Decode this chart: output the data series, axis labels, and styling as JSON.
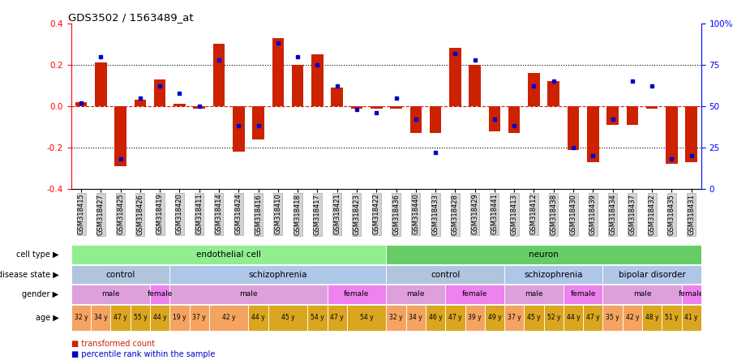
{
  "title": "GDS3502 / 1563489_at",
  "samples": [
    "GSM318415",
    "GSM318427",
    "GSM318425",
    "GSM318426",
    "GSM318419",
    "GSM318420",
    "GSM318411",
    "GSM318414",
    "GSM318424",
    "GSM318416",
    "GSM318410",
    "GSM318418",
    "GSM318417",
    "GSM318421",
    "GSM318423",
    "GSM318422",
    "GSM318436",
    "GSM318440",
    "GSM318433",
    "GSM318428",
    "GSM318429",
    "GSM318441",
    "GSM318413",
    "GSM318412",
    "GSM318438",
    "GSM318430",
    "GSM318439",
    "GSM318434",
    "GSM318437",
    "GSM318432",
    "GSM318435",
    "GSM318431"
  ],
  "bar_values": [
    0.02,
    0.21,
    -0.29,
    0.03,
    0.13,
    0.01,
    -0.01,
    0.3,
    -0.22,
    -0.16,
    0.33,
    0.2,
    0.25,
    0.09,
    -0.01,
    -0.01,
    -0.01,
    -0.13,
    -0.13,
    0.28,
    0.2,
    -0.12,
    -0.13,
    0.16,
    0.12,
    -0.21,
    -0.27,
    -0.09,
    -0.09,
    -0.01,
    -0.28,
    -0.27
  ],
  "dot_values": [
    52,
    80,
    18,
    55,
    62,
    58,
    50,
    78,
    38,
    38,
    88,
    80,
    75,
    62,
    48,
    46,
    55,
    42,
    22,
    82,
    78,
    42,
    38,
    62,
    65,
    25,
    20,
    42,
    65,
    62,
    18,
    20
  ],
  "cell_type_blocks": [
    {
      "label": "endothelial cell",
      "start": 0,
      "end": 16,
      "color": "#90ee90"
    },
    {
      "label": "neuron",
      "start": 16,
      "end": 32,
      "color": "#66cd66"
    }
  ],
  "disease_state_blocks": [
    {
      "label": "control",
      "start": 0,
      "end": 5,
      "color": "#b0c4de"
    },
    {
      "label": "schizophrenia",
      "start": 5,
      "end": 16,
      "color": "#aec6e8"
    },
    {
      "label": "control",
      "start": 16,
      "end": 22,
      "color": "#b0c4de"
    },
    {
      "label": "schizophrenia",
      "start": 22,
      "end": 27,
      "color": "#aec6e8"
    },
    {
      "label": "bipolar disorder",
      "start": 27,
      "end": 32,
      "color": "#aec6e8"
    }
  ],
  "gender_blocks": [
    {
      "label": "male",
      "start": 0,
      "end": 4,
      "color": "#dda0dd"
    },
    {
      "label": "female",
      "start": 4,
      "end": 5,
      "color": "#ee82ee"
    },
    {
      "label": "male",
      "start": 5,
      "end": 13,
      "color": "#dda0dd"
    },
    {
      "label": "female",
      "start": 13,
      "end": 16,
      "color": "#ee82ee"
    },
    {
      "label": "male",
      "start": 16,
      "end": 19,
      "color": "#dda0dd"
    },
    {
      "label": "female",
      "start": 19,
      "end": 22,
      "color": "#ee82ee"
    },
    {
      "label": "male",
      "start": 22,
      "end": 25,
      "color": "#dda0dd"
    },
    {
      "label": "female",
      "start": 25,
      "end": 27,
      "color": "#ee82ee"
    },
    {
      "label": "male",
      "start": 27,
      "end": 31,
      "color": "#dda0dd"
    },
    {
      "label": "female",
      "start": 31,
      "end": 32,
      "color": "#ee82ee"
    }
  ],
  "age_blocks": [
    {
      "label": "32 y",
      "start": 0,
      "end": 1,
      "color": "#f4a460"
    },
    {
      "label": "34 y",
      "start": 1,
      "end": 2,
      "color": "#f4a460"
    },
    {
      "label": "47 y",
      "start": 2,
      "end": 3,
      "color": "#daa520"
    },
    {
      "label": "55 y",
      "start": 3,
      "end": 4,
      "color": "#daa520"
    },
    {
      "label": "44 y",
      "start": 4,
      "end": 5,
      "color": "#daa520"
    },
    {
      "label": "19 y",
      "start": 5,
      "end": 6,
      "color": "#f4a460"
    },
    {
      "label": "37 y",
      "start": 6,
      "end": 7,
      "color": "#f4a460"
    },
    {
      "label": "42 y",
      "start": 7,
      "end": 9,
      "color": "#f4a460"
    },
    {
      "label": "44 y",
      "start": 9,
      "end": 10,
      "color": "#daa520"
    },
    {
      "label": "45 y",
      "start": 10,
      "end": 12,
      "color": "#daa520"
    },
    {
      "label": "54 y",
      "start": 12,
      "end": 13,
      "color": "#daa520"
    },
    {
      "label": "47 y",
      "start": 13,
      "end": 14,
      "color": "#daa520"
    },
    {
      "label": "54 y",
      "start": 14,
      "end": 16,
      "color": "#daa520"
    },
    {
      "label": "32 y",
      "start": 16,
      "end": 17,
      "color": "#f4a460"
    },
    {
      "label": "34 y",
      "start": 17,
      "end": 18,
      "color": "#f4a460"
    },
    {
      "label": "46 y",
      "start": 18,
      "end": 19,
      "color": "#daa520"
    },
    {
      "label": "47 y",
      "start": 19,
      "end": 20,
      "color": "#daa520"
    },
    {
      "label": "39 y",
      "start": 20,
      "end": 21,
      "color": "#f4a460"
    },
    {
      "label": "49 y",
      "start": 21,
      "end": 22,
      "color": "#daa520"
    },
    {
      "label": "37 y",
      "start": 22,
      "end": 23,
      "color": "#f4a460"
    },
    {
      "label": "45 y",
      "start": 23,
      "end": 24,
      "color": "#daa520"
    },
    {
      "label": "52 y",
      "start": 24,
      "end": 25,
      "color": "#daa520"
    },
    {
      "label": "44 y",
      "start": 25,
      "end": 26,
      "color": "#daa520"
    },
    {
      "label": "47 y",
      "start": 26,
      "end": 27,
      "color": "#daa520"
    },
    {
      "label": "35 y",
      "start": 27,
      "end": 28,
      "color": "#f4a460"
    },
    {
      "label": "42 y",
      "start": 28,
      "end": 29,
      "color": "#f4a460"
    },
    {
      "label": "48 y",
      "start": 29,
      "end": 30,
      "color": "#daa520"
    },
    {
      "label": "51 y",
      "start": 30,
      "end": 31,
      "color": "#daa520"
    },
    {
      "label": "41 y",
      "start": 31,
      "end": 32,
      "color": "#daa520"
    }
  ],
  "yticks": [
    -0.4,
    -0.2,
    0.0,
    0.2,
    0.4
  ],
  "y2ticks_vals": [
    0,
    25,
    50,
    75,
    100
  ],
  "y2ticks_labels": [
    "0",
    "25",
    "50",
    "75",
    "100%"
  ],
  "bar_color": "#cc2200",
  "dot_color": "#0000cc",
  "row_labels": [
    "cell type",
    "disease state",
    "gender",
    "age"
  ]
}
